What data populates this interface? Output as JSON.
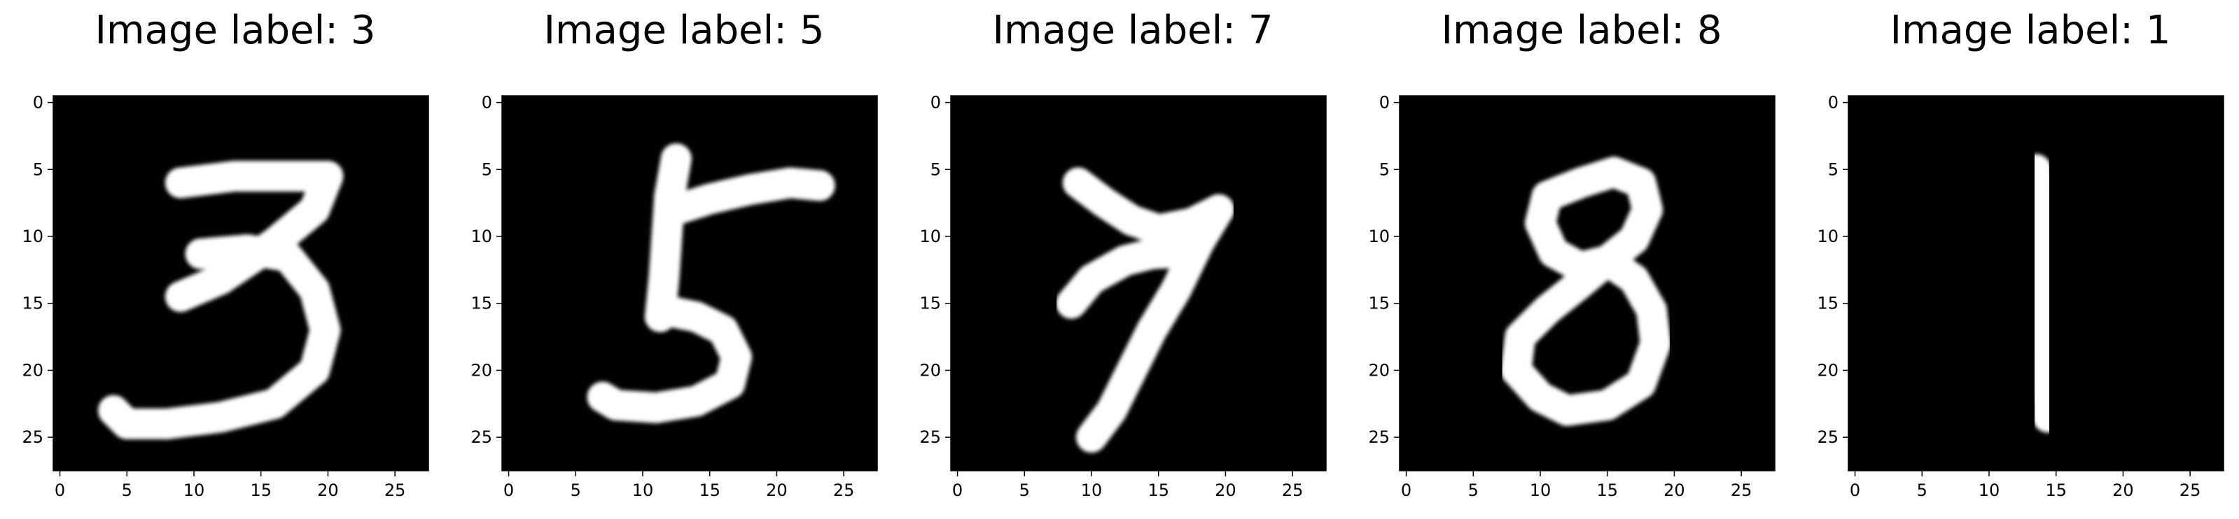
{
  "figure": {
    "panels": [
      {
        "title": "Image label: 3",
        "digit": "3"
      },
      {
        "title": "Image label: 5",
        "digit": "5"
      },
      {
        "title": "Image label: 7",
        "digit": "7"
      },
      {
        "title": "Image label: 8",
        "digit": "8"
      },
      {
        "title": "Image label: 1",
        "digit": "1"
      }
    ],
    "x_ticks": [
      "0",
      "5",
      "10",
      "15",
      "20",
      "25"
    ],
    "y_ticks": [
      "0",
      "5",
      "10",
      "15",
      "20",
      "25"
    ],
    "image_size": 28,
    "colors": {
      "background": "#000000",
      "digit": "#ffffff",
      "frame": "#000000",
      "page": "#ffffff"
    }
  }
}
